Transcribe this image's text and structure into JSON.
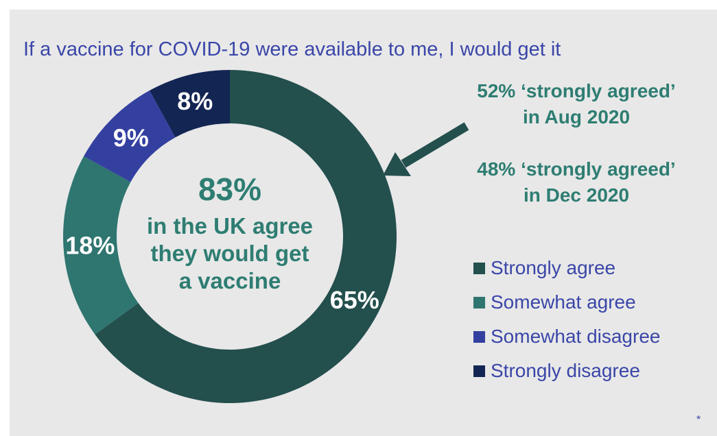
{
  "title": "If a vaccine for COVID-19 were available to me, I would get it",
  "center": {
    "headline": "83%",
    "lines": [
      "in the UK agree",
      "they would get",
      "a vaccine"
    ]
  },
  "notes": [
    {
      "line1": "52% ‘strongly agreed’",
      "line2": "in Aug 2020"
    },
    {
      "line1": "48% ‘strongly agreed’",
      "line2": "in Dec 2020"
    }
  ],
  "footnote": "*",
  "chart_data": {
    "type": "pie",
    "subtype": "donut",
    "categories": [
      "Strongly agree",
      "Somewhat agree",
      "Somewhat disagree",
      "Strongly disagree"
    ],
    "values": [
      65,
      18,
      9,
      8
    ],
    "data_labels": [
      "65%",
      "18%",
      "9%",
      "8%"
    ],
    "colors": [
      "#234f4d",
      "#2f7570",
      "#3440a0",
      "#132553"
    ],
    "legend_position": "right",
    "start_angle_deg": 0,
    "direction": "clockwise"
  }
}
